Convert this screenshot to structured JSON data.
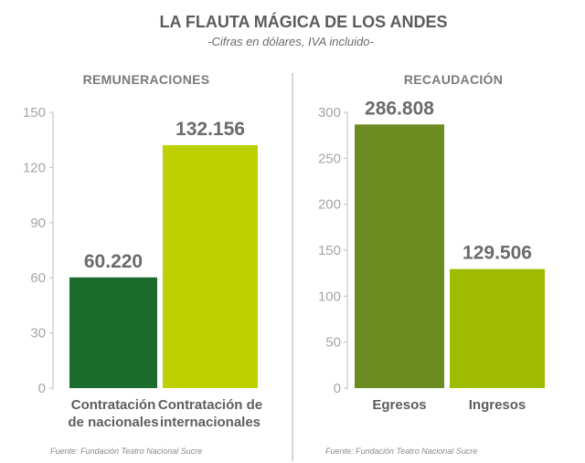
{
  "title": "LA FLAUTA MÁGICA DE LOS ANDES",
  "subtitle": "-Cifras en dólares, IVA incluido-",
  "colors": {
    "dark_green": "#1a6b2c",
    "lime": "#bdd000",
    "olive_green": "#6b8c21",
    "yellow_green": "#9fbb00"
  },
  "chart_data": [
    {
      "type": "bar",
      "title": "REMUNERACIONES",
      "categories": [
        [
          "Contratación",
          "de nacionales"
        ],
        [
          "Contratación de",
          "internacionales"
        ]
      ],
      "values": [
        60.22,
        132.156
      ],
      "value_labels": [
        "60.220",
        "132.156"
      ],
      "colors": [
        "#1a6b2c",
        "#bdd000"
      ],
      "yticks": [
        "0",
        "30",
        "60",
        "90",
        "120",
        "150"
      ],
      "ylim": [
        0,
        150
      ],
      "source": "Fuente: Fundación Teatro Nacional Sucre"
    },
    {
      "type": "bar",
      "title": "RECAUDACIÓN",
      "categories": [
        [
          "Egresos"
        ],
        [
          "Ingresos"
        ]
      ],
      "values": [
        286.808,
        129.506
      ],
      "value_labels": [
        "286.808",
        "129.506"
      ],
      "colors": [
        "#6b8c21",
        "#9fbb00"
      ],
      "yticks": [
        "0",
        "50",
        "100",
        "150",
        "200",
        "250",
        "300"
      ],
      "ylim": [
        0,
        300
      ],
      "source": "Fuente: Fundación Teatro Nacional Sucre"
    }
  ]
}
